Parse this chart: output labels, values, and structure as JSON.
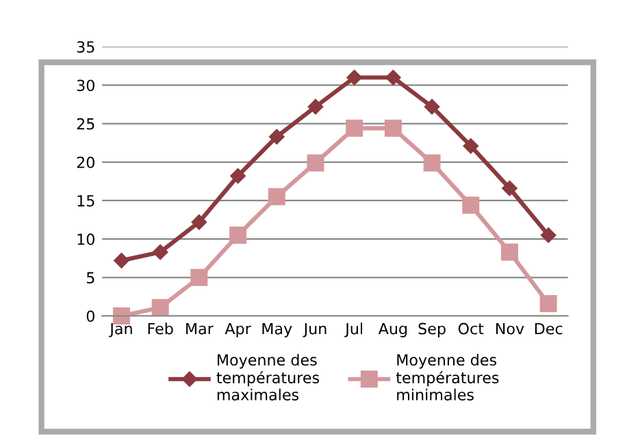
{
  "chart_data": {
    "type": "line",
    "categories": [
      "Jan",
      "Feb",
      "Mar",
      "Apr",
      "May",
      "Jun",
      "Jul",
      "Aug",
      "Sep",
      "Oct",
      "Nov",
      "Dec"
    ],
    "series": [
      {
        "name": "Moyenne des\ntempératures\nmaximales",
        "color": "#8b3a3f",
        "marker": "diamond",
        "values": [
          7.2,
          8.3,
          12.2,
          18.2,
          23.3,
          27.2,
          31.0,
          31.0,
          27.2,
          22.1,
          16.6,
          10.5
        ]
      },
      {
        "name": "Moyenne des\ntempératures\nminimales",
        "color": "#d4989c",
        "marker": "square",
        "values": [
          0.0,
          1.1,
          5.0,
          10.5,
          15.5,
          19.9,
          24.4,
          24.4,
          19.9,
          14.4,
          8.3,
          1.6
        ]
      }
    ],
    "ylim": [
      0,
      35
    ],
    "yticks": [
      0,
      5,
      10,
      15,
      20,
      25,
      30,
      35
    ],
    "grid": "y",
    "legend": "bottom",
    "line_style": "solid"
  }
}
